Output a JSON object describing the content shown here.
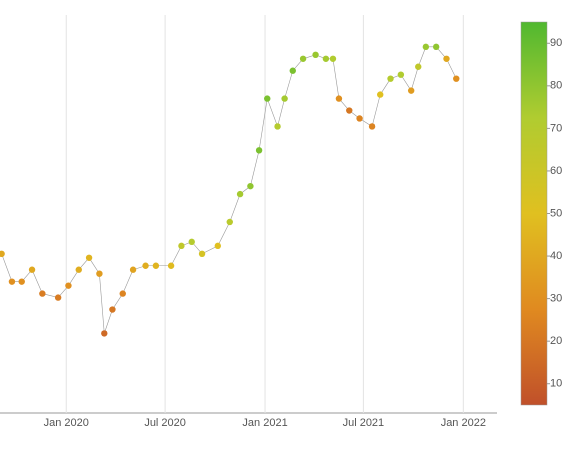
{
  "chart_data": {
    "type": "scatter",
    "x": [
      "2019-09-04",
      "2019-09-23",
      "2019-10-11",
      "2019-10-30",
      "2019-11-18",
      "2019-12-17",
      "2020-01-05",
      "2020-01-24",
      "2020-02-12",
      "2020-03-02",
      "2020-03-11",
      "2020-03-26",
      "2020-04-14",
      "2020-05-03",
      "2020-05-26",
      "2020-06-14",
      "2020-07-12",
      "2020-07-31",
      "2020-08-19",
      "2020-09-07",
      "2020-10-06",
      "2020-10-28",
      "2020-11-16",
      "2020-12-05",
      "2020-12-21",
      "2021-01-05",
      "2021-01-24",
      "2021-02-06",
      "2021-02-21",
      "2021-03-12",
      "2021-04-04",
      "2021-04-23",
      "2021-05-06",
      "2021-05-17",
      "2021-06-05",
      "2021-06-24",
      "2021-07-17",
      "2021-08-01",
      "2021-08-20",
      "2021-09-08",
      "2021-09-27",
      "2021-10-10",
      "2021-10-24",
      "2021-11-12",
      "2021-12-01",
      "2021-12-19"
    ],
    "values": [
      40,
      33,
      33,
      36,
      30,
      29,
      32,
      36,
      39,
      35,
      20,
      26,
      30,
      36,
      37,
      37,
      37,
      42,
      43,
      40,
      42,
      48,
      55,
      57,
      66,
      79,
      72,
      79,
      86,
      89,
      90,
      89,
      89,
      79,
      76,
      74,
      72,
      80,
      84,
      85,
      81,
      87,
      92,
      92,
      89,
      84
    ],
    "color_values": [
      40,
      30,
      30,
      40,
      22,
      22,
      30,
      42,
      45,
      35,
      15,
      20,
      25,
      38,
      42,
      45,
      48,
      65,
      70,
      55,
      50,
      68,
      75,
      80,
      85,
      85,
      70,
      75,
      85,
      78,
      78,
      75,
      72,
      30,
      20,
      25,
      25,
      50,
      70,
      72,
      35,
      65,
      78,
      80,
      40,
      30
    ],
    "xlim": [
      "2019-09-01",
      "2022-03-04"
    ],
    "ylim": [
      0,
      100
    ],
    "xticks": [
      {
        "value": "2020-01-01",
        "label": "Jan 2020"
      },
      {
        "value": "2020-07-01",
        "label": "Jul 2020"
      },
      {
        "value": "2021-01-01",
        "label": "Jan 2021"
      },
      {
        "value": "2021-07-01",
        "label": "Jul 2021"
      },
      {
        "value": "2022-01-01",
        "label": "Jan 2022"
      }
    ],
    "clim": [
      5,
      95
    ],
    "cticks": [
      10,
      20,
      30,
      40,
      50,
      60,
      70,
      80,
      90
    ],
    "colorscale": [
      "#c0502a",
      "#e08a20",
      "#e0c020",
      "#b0cc30",
      "#50b830"
    ],
    "grid": true
  }
}
